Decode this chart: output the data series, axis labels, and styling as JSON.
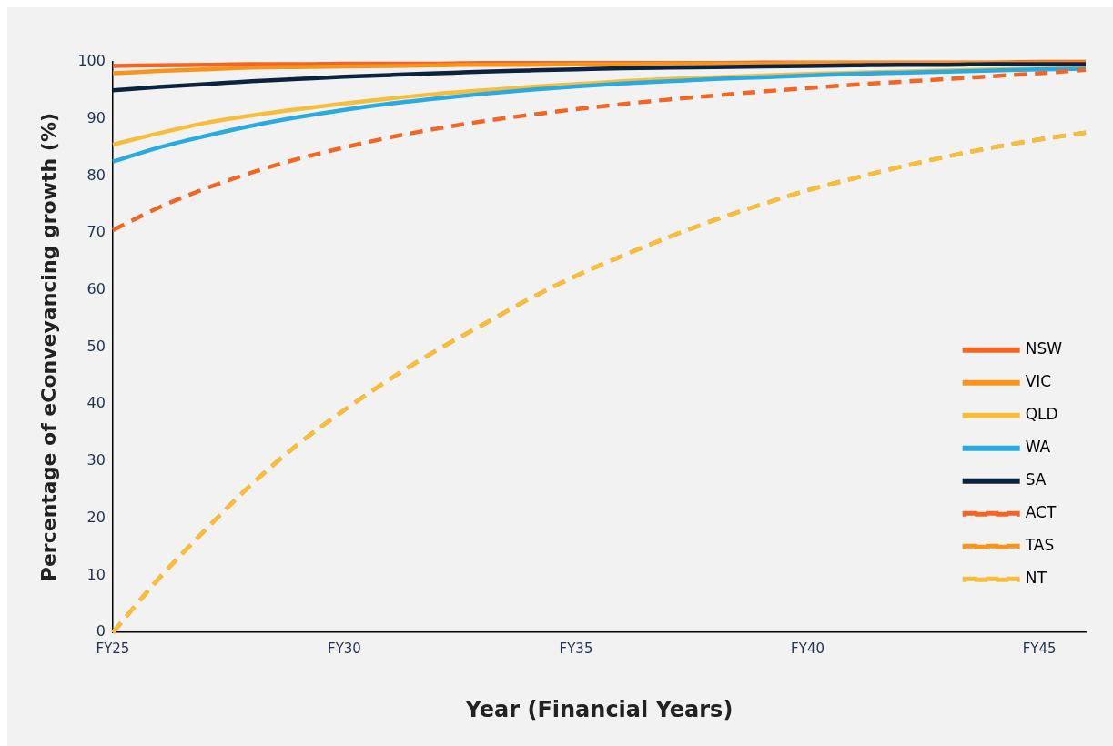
{
  "chart_data": {
    "type": "line",
    "xlabel": "Year (Financial Years)",
    "ylabel": "Percentage of eConveyancing growth (%)",
    "categories": [
      "FY25",
      null,
      null,
      null,
      null,
      "FY30",
      null,
      null,
      null,
      null,
      "FY35",
      null,
      null,
      null,
      null,
      "FY40",
      null,
      null,
      null,
      null,
      "FY45",
      null
    ],
    "ylim": [
      0,
      100
    ],
    "yticks": [
      0,
      10,
      20,
      30,
      40,
      50,
      60,
      70,
      80,
      90,
      100
    ],
    "grid": false,
    "legend": "bottom right",
    "marker": "none",
    "series": [
      {
        "name": "NSW",
        "color": "#f26522",
        "line_style": "solid",
        "values": [
          99.3,
          99.4,
          99.5,
          99.6,
          99.6,
          99.7,
          99.7,
          99.7,
          99.8,
          99.8,
          99.8,
          99.8,
          99.8,
          99.8,
          99.9,
          99.9,
          99.9,
          99.9,
          99.9,
          99.9,
          100,
          100
        ]
      },
      {
        "name": "VIC",
        "color": "#f7941d",
        "line_style": "solid",
        "values": [
          98,
          98.4,
          98.7,
          99,
          99.1,
          99.2,
          99.3,
          99.4,
          99.5,
          99.5,
          99.6,
          99.6,
          99.7,
          99.7,
          99.7,
          99.8,
          99.8,
          99.8,
          99.8,
          99.8,
          99.8,
          99.8
        ]
      },
      {
        "name": "QLD",
        "color": "#f6be3a",
        "line_style": "solid",
        "values": [
          85.5,
          87.5,
          89.3,
          90.6,
          91.7,
          92.7,
          93.6,
          94.4,
          95,
          95.6,
          96.1,
          96.6,
          97,
          97.3,
          97.6,
          97.9,
          98.1,
          98.3,
          98.5,
          98.7,
          98.8,
          98.9
        ]
      },
      {
        "name": "WA",
        "color": "#29abe2",
        "line_style": "solid",
        "values": [
          82.5,
          85,
          87,
          88.8,
          90.3,
          91.6,
          92.7,
          93.6,
          94.4,
          95.1,
          95.7,
          96.2,
          96.6,
          97,
          97.3,
          97.6,
          97.9,
          98.1,
          98.3,
          98.5,
          98.7,
          98.8
        ]
      },
      {
        "name": "SA",
        "color": "#0c2340",
        "line_style": "solid",
        "values": [
          95,
          95.6,
          96.1,
          96.6,
          97,
          97.4,
          97.7,
          98,
          98.3,
          98.5,
          98.7,
          98.9,
          99,
          99.1,
          99.2,
          99.3,
          99.4,
          99.5,
          99.5,
          99.6,
          99.6,
          99.6
        ]
      },
      {
        "name": "ACT",
        "color": "#f26522",
        "line_style": "dashed",
        "values": [
          70.5,
          74.5,
          77.8,
          80.6,
          83,
          85,
          86.8,
          88.3,
          89.6,
          90.7,
          91.7,
          92.6,
          93.4,
          94.1,
          94.8,
          95.4,
          96,
          96.5,
          97,
          97.5,
          98,
          98.6
        ]
      },
      {
        "name": "TAS",
        "color": "#f7941d",
        "line_style": "dashed",
        "values": [
          0,
          9.5,
          18,
          26,
          33,
          39,
          44.5,
          49.5,
          54,
          58.5,
          62.5,
          66,
          69.3,
          72.3,
          75,
          77.5,
          79.6,
          81.6,
          83.4,
          85,
          86.4,
          87.6
        ]
      },
      {
        "name": "NT",
        "color": "#f6be3a",
        "line_style": "dashed",
        "values": [
          0,
          9.5,
          18,
          26,
          33,
          39,
          44.5,
          49.5,
          54,
          58.5,
          62.5,
          66,
          69.3,
          72.3,
          75,
          77.5,
          79.6,
          81.6,
          83.4,
          85,
          86.4,
          87.6
        ]
      }
    ]
  }
}
